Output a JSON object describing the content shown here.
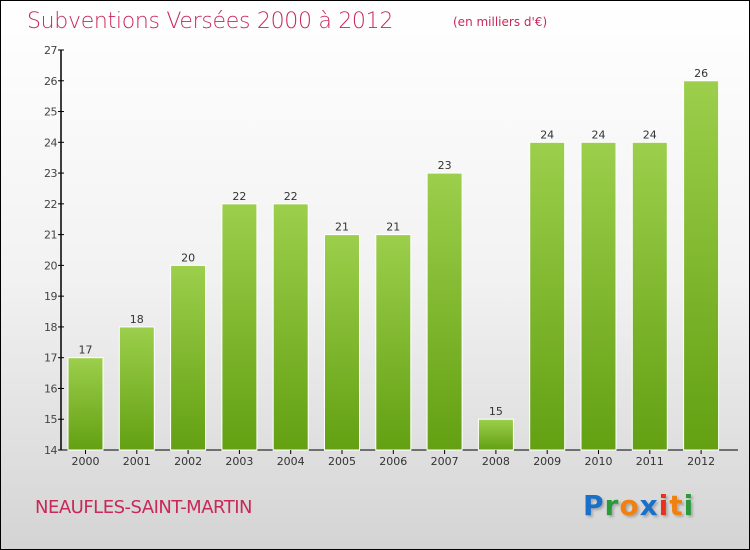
{
  "chart_data": {
    "type": "bar",
    "title": "Subventions Versées 2000 à 2012",
    "unit_note": "(en milliers d'€)",
    "categories": [
      "2000",
      "2001",
      "2002",
      "2003",
      "2004",
      "2005",
      "2006",
      "2007",
      "2008",
      "2009",
      "2010",
      "2011",
      "2012"
    ],
    "values": [
      17,
      18,
      20,
      22,
      22,
      21,
      21,
      23,
      15,
      24,
      24,
      24,
      26
    ],
    "ylim": [
      14,
      27
    ],
    "yticks": [
      14,
      15,
      16,
      17,
      18,
      19,
      20,
      21,
      22,
      23,
      24,
      25,
      26,
      27
    ],
    "xlabel": "",
    "ylabel": "",
    "bar_color_top": "#9ccf4c",
    "bar_color_bottom": "#63a012"
  },
  "commune": "NEAUFLES-SAINT-MARTIN",
  "logo": {
    "letters": [
      "P",
      "r",
      "o",
      "x",
      "i",
      "t",
      "i"
    ],
    "colors": [
      "#1a6fc9",
      "#2a9a3a",
      "#f08010",
      "#1a6fc9",
      "#e8301a",
      "#f08010",
      "#2a9a3a"
    ]
  }
}
